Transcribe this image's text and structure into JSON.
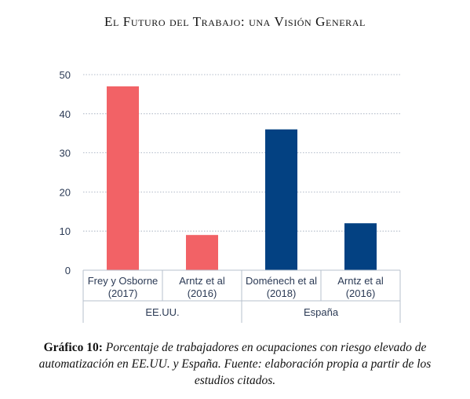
{
  "running_head": "El Futuro del Trabajo: una Visión General",
  "caption": {
    "label": "Gráfico 10:",
    "text": "Porcentaje de trabajadores en ocupaciones con riesgo elevado de automatización en EE.UU. y España. Fuente: elaboración propia a partir de los estudios citados."
  },
  "chart_data": {
    "type": "bar",
    "categories": [
      [
        "Frey y Osborne",
        "(2017)"
      ],
      [
        "Arntz et al",
        "(2016)"
      ],
      [
        "Doménech et al",
        "(2018)"
      ],
      [
        "Arntz et al",
        "(2016)"
      ]
    ],
    "groups": [
      {
        "label": "EE.UU.",
        "indices": [
          0,
          1
        ]
      },
      {
        "label": "España",
        "indices": [
          2,
          3
        ]
      }
    ],
    "values": [
      47,
      9,
      36,
      12
    ],
    "colors": [
      "#f26266",
      "#f26266",
      "#034182",
      "#034182"
    ],
    "yticks": [
      "0",
      "10",
      "20",
      "30",
      "40",
      "50"
    ],
    "ylim": [
      0,
      50
    ],
    "grid": true
  }
}
